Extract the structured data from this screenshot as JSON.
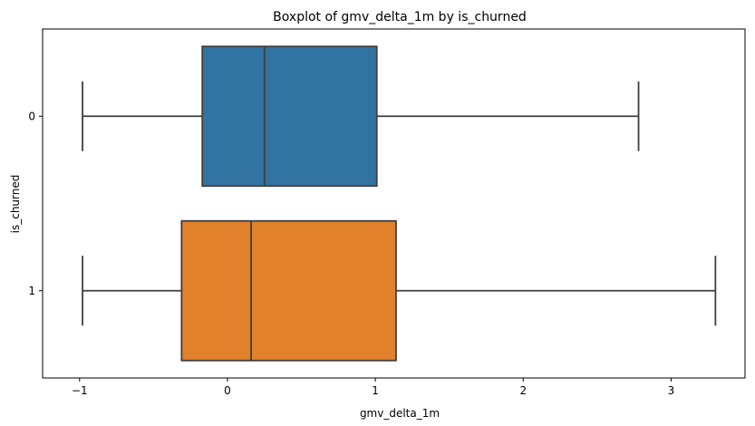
{
  "chart_data": {
    "type": "boxplot",
    "orientation": "horizontal",
    "title": "Boxplot of gmv_delta_1m by is_churned",
    "xlabel": "gmv_delta_1m",
    "ylabel": "is_churned",
    "xlim": [
      -1.25,
      3.5
    ],
    "xticks": [
      -1,
      0,
      1,
      2,
      3
    ],
    "xtick_labels": [
      "−1",
      "0",
      "1",
      "2",
      "3"
    ],
    "grid": false,
    "legend": "none",
    "categories": [
      "0",
      "1"
    ],
    "boxes": [
      {
        "category": "0",
        "whisker_low": -0.98,
        "q1": -0.17,
        "median": 0.25,
        "q3": 1.01,
        "whisker_high": 2.78,
        "color": "#3274a1"
      },
      {
        "category": "1",
        "whisker_low": -0.98,
        "q1": -0.31,
        "median": 0.16,
        "q3": 1.14,
        "whisker_high": 3.3,
        "color": "#e1812c"
      }
    ]
  }
}
